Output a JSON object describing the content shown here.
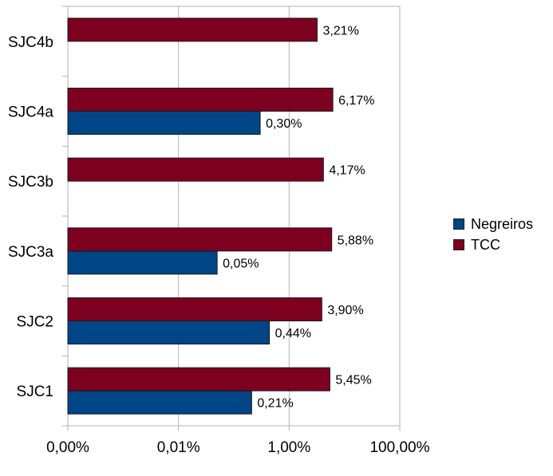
{
  "chart_data": {
    "type": "bar",
    "orientation": "horizontal",
    "x_scale": "log",
    "categories": [
      "SJC1",
      "SJC2",
      "SJC3a",
      "SJC3b",
      "SJC4a",
      "SJC4b"
    ],
    "series": [
      {
        "name": "Negreiros",
        "color": "#004586",
        "values": [
          0.21,
          0.44,
          0.05,
          null,
          0.3,
          null
        ],
        "labels": [
          "0,21%",
          "0,44%",
          "0,05%",
          "",
          "0,30%",
          ""
        ]
      },
      {
        "name": "TCC",
        "color": "#7e0021",
        "values": [
          5.45,
          3.9,
          5.88,
          4.17,
          6.17,
          3.21
        ],
        "labels": [
          "5,45%",
          "3,90%",
          "5,88%",
          "4,17%",
          "6,17%",
          "3,21%"
        ]
      }
    ],
    "x_ticks": [
      "0,00%",
      "0,01%",
      "1,00%",
      "100,00%"
    ],
    "grid": true,
    "legend_position": "right"
  }
}
